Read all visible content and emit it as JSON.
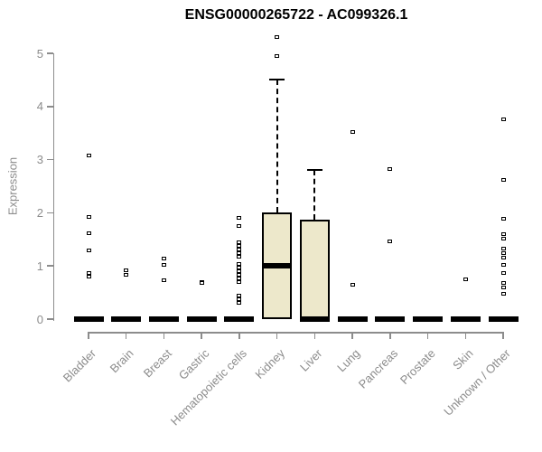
{
  "chart_data": {
    "type": "boxplot",
    "title": "ENSG00000265722 - AC099326.1",
    "ylabel": "Expression",
    "xlabel": "",
    "ylim": [
      0,
      5
    ],
    "yticks": [
      0,
      1,
      2,
      3,
      4,
      5
    ],
    "grid": false,
    "categories": [
      "Bladder",
      "Brain",
      "Breast",
      "Gastric",
      "Hematopoietic cells",
      "Kidney",
      "Liver",
      "Lung",
      "Pancreas",
      "Prostate",
      "Skin",
      "Unknown / Other"
    ],
    "boxes": [
      {
        "category": "Bladder",
        "q1": 0,
        "median": 0,
        "q3": 0,
        "whisker_low": 0,
        "whisker_high": 0,
        "outliers": [
          3.08,
          1.92,
          1.61,
          1.3,
          0.87,
          0.8
        ]
      },
      {
        "category": "Brain",
        "q1": 0,
        "median": 0,
        "q3": 0,
        "whisker_low": 0,
        "whisker_high": 0,
        "outliers": [
          0.92,
          0.83
        ]
      },
      {
        "category": "Breast",
        "q1": 0,
        "median": 0,
        "q3": 0,
        "whisker_low": 0,
        "whisker_high": 0,
        "outliers": [
          1.14,
          1.02,
          0.73
        ]
      },
      {
        "category": "Gastric",
        "q1": 0,
        "median": 0,
        "q3": 0,
        "whisker_low": 0,
        "whisker_high": 0,
        "outliers": [
          0.7,
          0.68
        ]
      },
      {
        "category": "Hematopoietic cells",
        "q1": 0,
        "median": 0,
        "q3": 0,
        "whisker_low": 0,
        "whisker_high": 0,
        "outliers": [
          1.9,
          1.75,
          1.45,
          1.38,
          1.31,
          1.24,
          1.17,
          1.04,
          0.97,
          0.9,
          0.83,
          0.76,
          0.69,
          0.44,
          0.37,
          0.3
        ]
      },
      {
        "category": "Kidney",
        "q1": 0,
        "median": 1.0,
        "q3": 2.0,
        "whisker_low": 0,
        "whisker_high": 4.5,
        "outliers": [
          5.3,
          4.95
        ]
      },
      {
        "category": "Liver",
        "q1": 0,
        "median": 0,
        "q3": 1.87,
        "whisker_low": 0,
        "whisker_high": 2.8,
        "outliers": []
      },
      {
        "category": "Lung",
        "q1": 0,
        "median": 0,
        "q3": 0,
        "whisker_low": 0,
        "whisker_high": 0,
        "outliers": [
          3.52,
          0.65
        ]
      },
      {
        "category": "Pancreas",
        "q1": 0,
        "median": 0,
        "q3": 0,
        "whisker_low": 0,
        "whisker_high": 0,
        "outliers": [
          2.82,
          1.46
        ]
      },
      {
        "category": "Prostate",
        "q1": 0,
        "median": 0,
        "q3": 0,
        "whisker_low": 0,
        "whisker_high": 0,
        "outliers": []
      },
      {
        "category": "Skin",
        "q1": 0,
        "median": 0,
        "q3": 0,
        "whisker_low": 0,
        "whisker_high": 0,
        "outliers": [
          0.75
        ]
      },
      {
        "category": "Unknown / Other",
        "q1": 0,
        "median": 0,
        "q3": 0,
        "whisker_low": 0,
        "whisker_high": 0,
        "outliers": [
          3.76,
          2.62,
          1.89,
          1.6,
          1.51,
          1.33,
          1.24,
          1.16,
          1.02,
          0.87,
          0.68,
          0.6,
          0.48
        ]
      }
    ],
    "colors": {
      "box_fill": "#ede8cb",
      "box_border": "#000000",
      "median": "#000000",
      "outlier": "#000000",
      "axis": "#8c8c8c",
      "tick_label": "#8c8c8c",
      "title": "#000000"
    }
  }
}
